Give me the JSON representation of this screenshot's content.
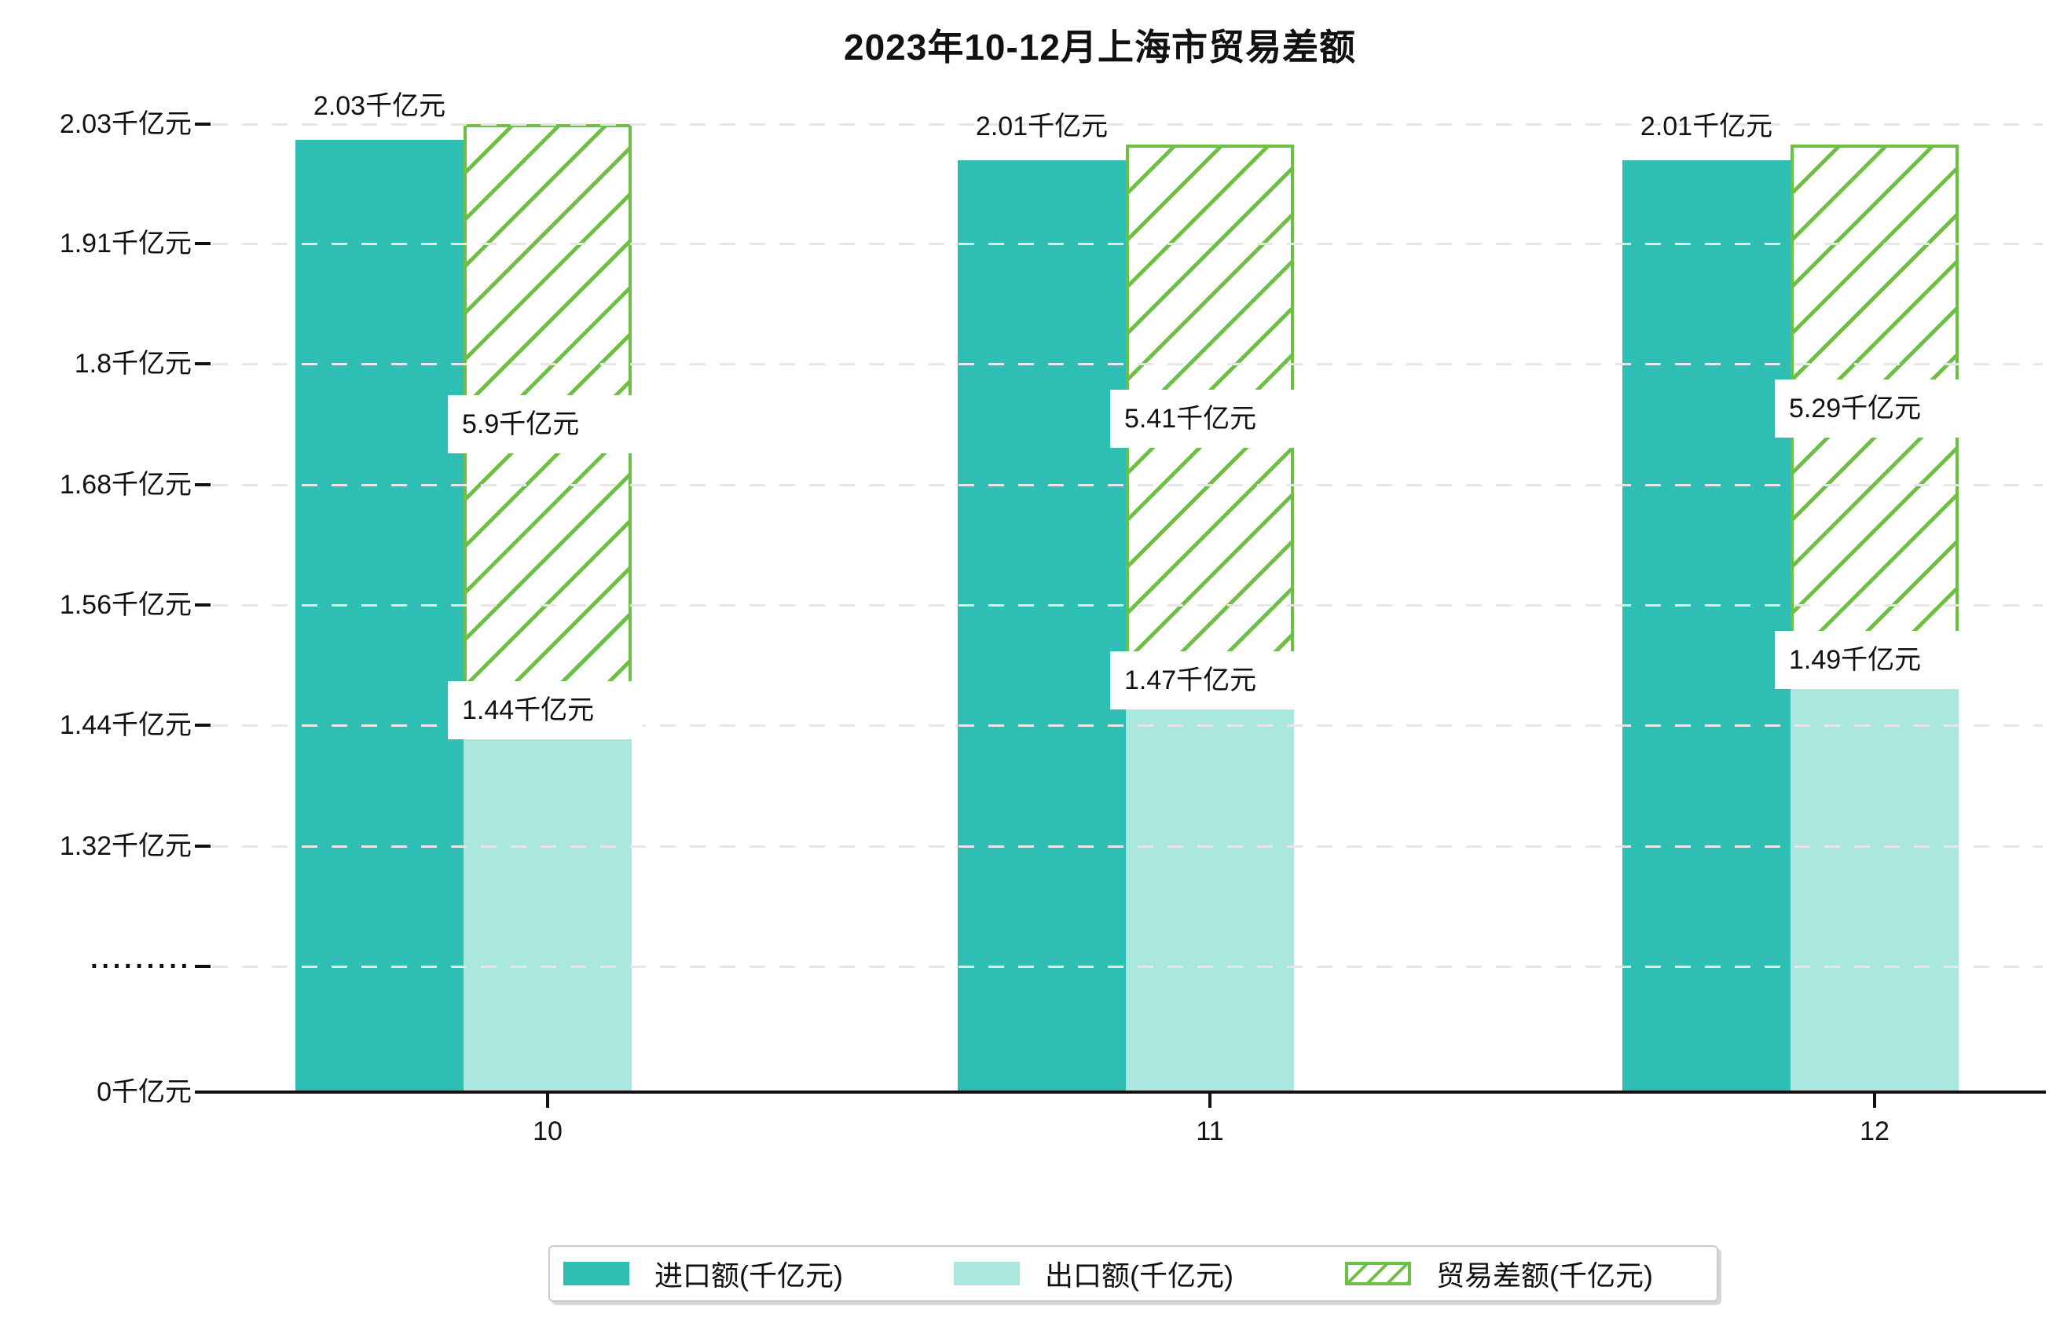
{
  "title": "2023年10-12月上海市贸易差额",
  "chart_data": {
    "type": "bar",
    "categories": [
      "10",
      "11",
      "12"
    ],
    "series": [
      {
        "name": "进口额(千亿元)",
        "values": [
          2.03,
          2.01,
          2.01
        ],
        "labels": [
          "2.03千亿元",
          "2.01千亿元",
          "2.01千亿元"
        ],
        "color": "#2fbeb3",
        "style": "solid"
      },
      {
        "name": "出口额(千亿元)",
        "values": [
          1.44,
          1.47,
          1.49
        ],
        "labels": [
          "1.44千亿元",
          "1.47千亿元",
          "1.49千亿元"
        ],
        "color": "#a9e7df",
        "style": "solid"
      },
      {
        "name": "贸易差额(千亿元)",
        "values": [
          5.9,
          5.41,
          5.29
        ],
        "labels": [
          "5.9千亿元",
          "5.41千亿元",
          "5.29千亿元"
        ],
        "color": "#6ec044",
        "style": "hatched"
      }
    ],
    "y_ticks": [
      "2.03千亿元",
      "1.91千亿元",
      "1.8千亿元",
      "1.68千亿元",
      "1.56千亿元",
      "1.44千亿元",
      "1.32千亿元",
      "·········",
      "0千亿元"
    ],
    "axis_break": true,
    "grid": true,
    "legend_position": "bottom",
    "unit": "千亿元"
  },
  "colors": {
    "import": "#2fbeb3",
    "export": "#a9e7df",
    "balance": "#6ec044",
    "grid": "#e6e6e6",
    "axis": "#111111"
  }
}
